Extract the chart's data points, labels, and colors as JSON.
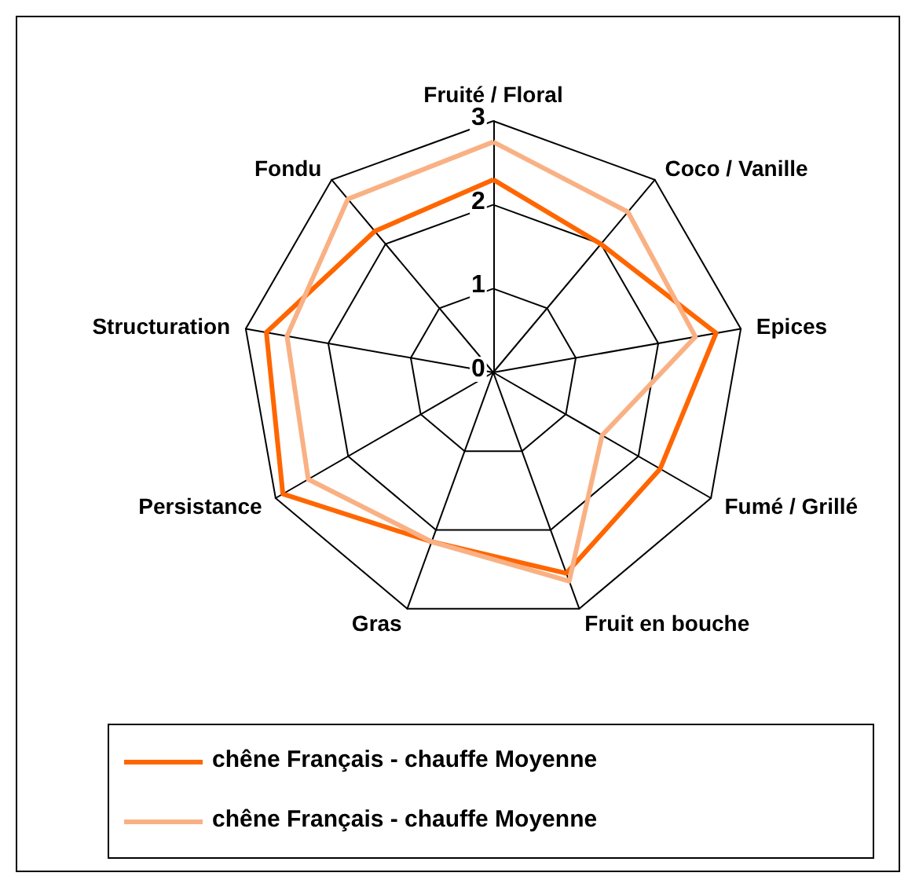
{
  "chart_data": {
    "type": "radar",
    "categories": [
      "Fruité / Floral",
      "Coco / Vanille",
      "Epices",
      "Fumé / Grillé",
      "Fruit en bouche",
      "Gras",
      "Persistance",
      "Structuration",
      "Fondu"
    ],
    "ylim": [
      0,
      3
    ],
    "yticks": [
      0,
      1,
      2,
      3
    ],
    "legend": "bottom",
    "series": [
      {
        "name": "chêne Français - chauffe Moyenne",
        "color": "#ff6600",
        "values": [
          2.3,
          2.0,
          2.7,
          2.3,
          2.55,
          2.15,
          2.9,
          2.75,
          2.2
        ]
      },
      {
        "name": "chêne Français - chauffe Moyenne",
        "color": "#f9b184",
        "values": [
          2.75,
          2.5,
          2.45,
          1.5,
          2.65,
          2.15,
          2.55,
          2.5,
          2.7
        ]
      }
    ]
  }
}
